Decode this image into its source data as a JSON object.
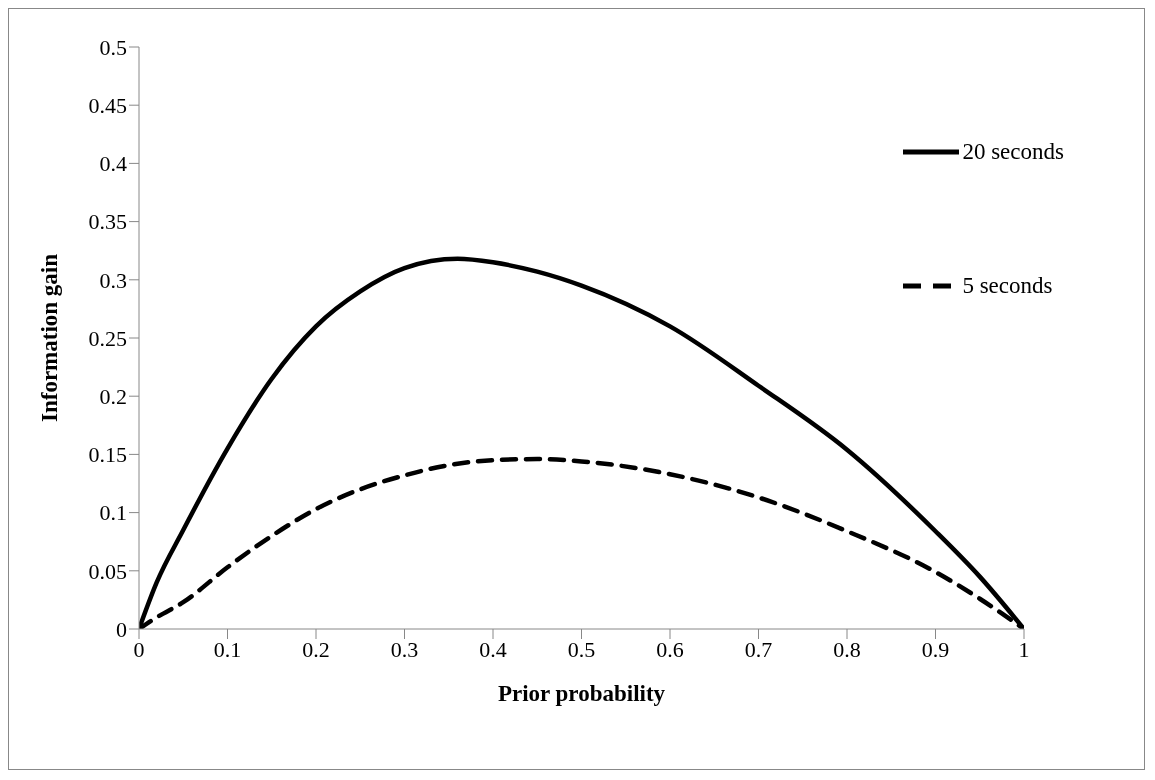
{
  "chart_data": {
    "type": "line",
    "xlabel": "Prior probability",
    "ylabel": "Information gain",
    "x": [
      0,
      0.02,
      0.05,
      0.1,
      0.15,
      0.2,
      0.25,
      0.3,
      0.36,
      0.4,
      0.45,
      0.5,
      0.6,
      0.7,
      0.8,
      0.9,
      0.95,
      1
    ],
    "series": [
      {
        "name": "20 seconds",
        "color": "#000000",
        "line_style": "solid",
        "values": [
          0,
          0.04,
          0.085,
          0.155,
          0.215,
          0.26,
          0.29,
          0.31,
          0.318,
          0.315,
          0.307,
          0.295,
          0.26,
          0.209,
          0.154,
          0.084,
          0.045,
          0
        ]
      },
      {
        "name": "5 seconds",
        "color": "#000000",
        "line_style": "dashed",
        "values": [
          0,
          0.01,
          0.023,
          0.053,
          0.08,
          0.103,
          0.12,
          0.132,
          0.142,
          0.145,
          0.146,
          0.144,
          0.133,
          0.113,
          0.084,
          0.049,
          0.026,
          0
        ]
      }
    ],
    "xlim": [
      0,
      1
    ],
    "xticks": [
      0,
      0.1,
      0.2,
      0.3,
      0.4,
      0.5,
      0.6,
      0.7,
      0.8,
      0.9,
      1
    ],
    "ylim": [
      0,
      0.5
    ],
    "yticks": [
      0,
      0.05,
      0.1,
      0.15,
      0.2,
      0.25,
      0.3,
      0.35,
      0.4,
      0.45,
      0.5
    ],
    "grid": false,
    "legend": "top right",
    "marker": "none"
  }
}
